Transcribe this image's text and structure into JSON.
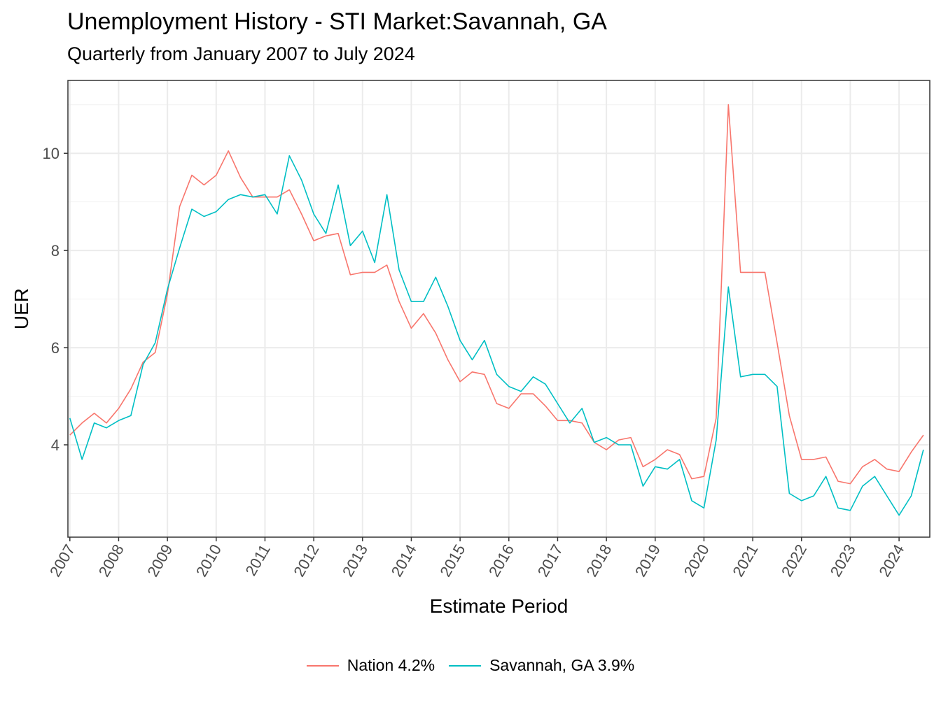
{
  "chart_data": {
    "type": "line",
    "title": "Unemployment History - STI Market:Savannah, GA",
    "subtitle": "Quarterly from January 2007 to July 2024",
    "xlabel": "Estimate Period",
    "ylabel": "UER",
    "x_ticks": [
      "2007",
      "2008",
      "2009",
      "2010",
      "2011",
      "2012",
      "2013",
      "2014",
      "2015",
      "2016",
      "2017",
      "2018",
      "2019",
      "2020",
      "2021",
      "2022",
      "2023",
      "2024"
    ],
    "y_ticks": [
      4,
      6,
      8,
      10
    ],
    "ylim": [
      2.1,
      11.5
    ],
    "xlim": [
      2006.96,
      2024.63
    ],
    "grid": true,
    "legend_position": "bottom",
    "x": [
      2007.0,
      2007.25,
      2007.5,
      2007.75,
      2008.0,
      2008.25,
      2008.5,
      2008.75,
      2009.0,
      2009.25,
      2009.5,
      2009.75,
      2010.0,
      2010.25,
      2010.5,
      2010.75,
      2011.0,
      2011.25,
      2011.5,
      2011.75,
      2012.0,
      2012.25,
      2012.5,
      2012.75,
      2013.0,
      2013.25,
      2013.5,
      2013.75,
      2014.0,
      2014.25,
      2014.5,
      2014.75,
      2015.0,
      2015.25,
      2015.5,
      2015.75,
      2016.0,
      2016.25,
      2016.5,
      2016.75,
      2017.0,
      2017.25,
      2017.5,
      2017.75,
      2018.0,
      2018.25,
      2018.5,
      2018.75,
      2019.0,
      2019.25,
      2019.5,
      2019.75,
      2020.0,
      2020.25,
      2020.5,
      2020.75,
      2021.0,
      2021.25,
      2021.5,
      2021.75,
      2022.0,
      2022.25,
      2022.5,
      2022.75,
      2023.0,
      2023.25,
      2023.5,
      2023.75,
      2024.0,
      2024.25,
      2024.5
    ],
    "series": [
      {
        "name": "Nation 4.2%",
        "color": "#F8766D",
        "values": [
          4.2,
          4.45,
          4.65,
          4.45,
          4.75,
          5.15,
          5.7,
          5.9,
          7.1,
          8.9,
          9.55,
          9.35,
          9.55,
          10.05,
          9.5,
          9.1,
          9.1,
          9.1,
          9.25,
          8.75,
          8.2,
          8.3,
          8.35,
          7.5,
          7.55,
          7.55,
          7.7,
          6.95,
          6.4,
          6.7,
          6.3,
          5.75,
          5.3,
          5.5,
          5.45,
          4.85,
          4.75,
          5.05,
          5.05,
          4.8,
          4.5,
          4.5,
          4.45,
          4.05,
          3.9,
          4.1,
          4.15,
          3.55,
          3.7,
          3.9,
          3.8,
          3.3,
          3.35,
          4.55,
          11.0,
          7.55,
          7.55,
          7.55,
          6.1,
          4.6,
          3.7,
          3.7,
          3.75,
          3.25,
          3.2,
          3.55,
          3.7,
          3.5,
          3.45,
          3.85,
          4.2
        ]
      },
      {
        "name": "Savannah, GA 3.9%",
        "color": "#00BFC4",
        "values": [
          4.55,
          3.7,
          4.45,
          4.35,
          4.5,
          4.6,
          5.65,
          6.1,
          7.2,
          8.05,
          8.85,
          8.7,
          8.8,
          9.05,
          9.15,
          9.1,
          9.15,
          8.75,
          9.95,
          9.45,
          8.75,
          8.35,
          9.35,
          8.1,
          8.4,
          7.75,
          9.15,
          7.6,
          6.95,
          6.95,
          7.45,
          6.85,
          6.15,
          5.75,
          6.15,
          5.45,
          5.2,
          5.1,
          5.4,
          5.25,
          4.85,
          4.45,
          4.75,
          4.05,
          4.15,
          4.0,
          4.0,
          3.15,
          3.55,
          3.5,
          3.7,
          2.85,
          2.7,
          4.1,
          7.25,
          5.4,
          5.45,
          5.45,
          5.2,
          3.0,
          2.85,
          2.95,
          3.35,
          2.7,
          2.65,
          3.15,
          3.35,
          2.95,
          2.55,
          2.95,
          3.9
        ]
      }
    ]
  }
}
